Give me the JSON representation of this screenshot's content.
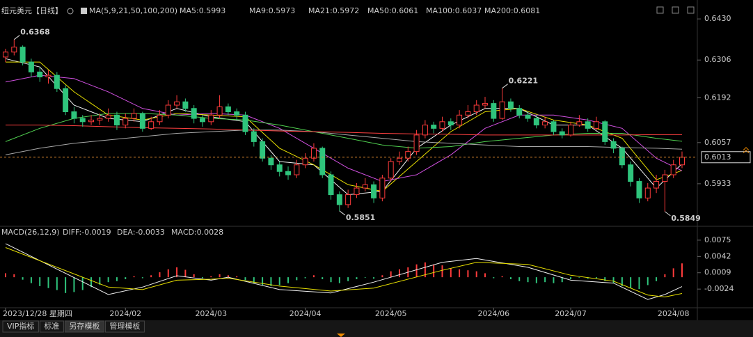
{
  "chart_data": [
    {
      "type": "candlestick",
      "title": "纽元美元【日线】",
      "subtitle": "MA(5,9,21,50,100,200)",
      "up_color": "#ff3b3b",
      "down_color": "#2fc47c",
      "ohlc": [
        [
          0.6315,
          0.634,
          0.63,
          0.633
        ],
        [
          0.633,
          0.6368,
          0.632,
          0.6345
        ],
        [
          0.6345,
          0.635,
          0.629,
          0.63
        ],
        [
          0.63,
          0.631,
          0.6255,
          0.627
        ],
        [
          0.627,
          0.6285,
          0.624,
          0.6255
        ],
        [
          0.6255,
          0.6275,
          0.6235,
          0.626
        ],
        [
          0.626,
          0.627,
          0.621,
          0.622
        ],
        [
          0.622,
          0.623,
          0.614,
          0.615
        ],
        [
          0.615,
          0.6165,
          0.6115,
          0.613
        ],
        [
          0.613,
          0.614,
          0.6105,
          0.612
        ],
        [
          0.612,
          0.614,
          0.611,
          0.6125
        ],
        [
          0.6125,
          0.6145,
          0.611,
          0.613
        ],
        [
          0.613,
          0.616,
          0.612,
          0.614
        ],
        [
          0.614,
          0.615,
          0.6095,
          0.611
        ],
        [
          0.611,
          0.6145,
          0.61,
          0.613
        ],
        [
          0.613,
          0.616,
          0.612,
          0.6145
        ],
        [
          0.6145,
          0.615,
          0.609,
          0.61
        ],
        [
          0.61,
          0.6135,
          0.6095,
          0.612
        ],
        [
          0.612,
          0.6155,
          0.611,
          0.614
        ],
        [
          0.614,
          0.6185,
          0.613,
          0.617
        ],
        [
          0.617,
          0.62,
          0.616,
          0.618
        ],
        [
          0.618,
          0.619,
          0.615,
          0.616
        ],
        [
          0.616,
          0.617,
          0.6115,
          0.613
        ],
        [
          0.613,
          0.614,
          0.6105,
          0.612
        ],
        [
          0.612,
          0.6155,
          0.611,
          0.614
        ],
        [
          0.614,
          0.62,
          0.613,
          0.6165
        ],
        [
          0.6165,
          0.6175,
          0.614,
          0.615
        ],
        [
          0.615,
          0.616,
          0.6125,
          0.614
        ],
        [
          0.614,
          0.615,
          0.608,
          0.609
        ],
        [
          0.609,
          0.61,
          0.6045,
          0.606
        ],
        [
          0.606,
          0.607,
          0.6,
          0.601
        ],
        [
          0.601,
          0.602,
          0.5975,
          0.599
        ],
        [
          0.599,
          0.6,
          0.5955,
          0.597
        ],
        [
          0.597,
          0.5985,
          0.5945,
          0.596
        ],
        [
          0.596,
          0.6005,
          0.595,
          0.599
        ],
        [
          0.599,
          0.6025,
          0.598,
          0.601
        ],
        [
          0.601,
          0.6055,
          0.6,
          0.604
        ],
        [
          0.604,
          0.6045,
          0.595,
          0.596
        ],
        [
          0.596,
          0.597,
          0.5885,
          0.59
        ],
        [
          0.59,
          0.591,
          0.5851,
          0.587
        ],
        [
          0.587,
          0.5915,
          0.586,
          0.59
        ],
        [
          0.59,
          0.5935,
          0.589,
          0.592
        ],
        [
          0.592,
          0.595,
          0.591,
          0.593
        ],
        [
          0.593,
          0.594,
          0.5875,
          0.589
        ],
        [
          0.589,
          0.596,
          0.588,
          0.595
        ],
        [
          0.595,
          0.601,
          0.594,
          0.6
        ],
        [
          0.6,
          0.603,
          0.599,
          0.601
        ],
        [
          0.601,
          0.6045,
          0.6,
          0.603
        ],
        [
          0.603,
          0.6095,
          0.602,
          0.608
        ],
        [
          0.608,
          0.6125,
          0.607,
          0.611
        ],
        [
          0.611,
          0.612,
          0.6085,
          0.61
        ],
        [
          0.61,
          0.6135,
          0.609,
          0.612
        ],
        [
          0.612,
          0.613,
          0.6095,
          0.611
        ],
        [
          0.611,
          0.6155,
          0.61,
          0.614
        ],
        [
          0.614,
          0.617,
          0.613,
          0.615
        ],
        [
          0.615,
          0.6185,
          0.614,
          0.617
        ],
        [
          0.617,
          0.6195,
          0.616,
          0.6175
        ],
        [
          0.6175,
          0.6185,
          0.612,
          0.613
        ],
        [
          0.613,
          0.6221,
          0.6125,
          0.618
        ],
        [
          0.618,
          0.619,
          0.615,
          0.616
        ],
        [
          0.616,
          0.617,
          0.613,
          0.614
        ],
        [
          0.614,
          0.615,
          0.612,
          0.613
        ],
        [
          0.613,
          0.614,
          0.61,
          0.611
        ],
        [
          0.611,
          0.6135,
          0.61,
          0.612
        ],
        [
          0.612,
          0.6125,
          0.608,
          0.609
        ],
        [
          0.609,
          0.61,
          0.607,
          0.608
        ],
        [
          0.608,
          0.612,
          0.6075,
          0.611
        ],
        [
          0.611,
          0.614,
          0.6105,
          0.612
        ],
        [
          0.612,
          0.613,
          0.609,
          0.61
        ],
        [
          0.61,
          0.6135,
          0.6095,
          0.612
        ],
        [
          0.612,
          0.6125,
          0.605,
          0.606
        ],
        [
          0.606,
          0.607,
          0.6025,
          0.604
        ],
        [
          0.604,
          0.6045,
          0.598,
          0.599
        ],
        [
          0.599,
          0.6,
          0.5925,
          0.594
        ],
        [
          0.594,
          0.595,
          0.5875,
          0.589
        ],
        [
          0.589,
          0.5935,
          0.588,
          0.592
        ],
        [
          0.592,
          0.596,
          0.5905,
          0.594
        ],
        [
          0.594,
          0.5975,
          0.5849,
          0.596
        ],
        [
          0.596,
          0.6005,
          0.595,
          0.599
        ],
        [
          0.599,
          0.603,
          0.598,
          0.6013
        ]
      ],
      "series": [
        {
          "name": "MA5:0.5993",
          "color": "#f0f0f0",
          "x": [
            0,
            4,
            8,
            12,
            16,
            20,
            24,
            28,
            32,
            36,
            40,
            44,
            48,
            52,
            56,
            60,
            64,
            68,
            72,
            76,
            79
          ],
          "values": [
            0.631,
            0.6285,
            0.617,
            0.613,
            0.612,
            0.616,
            0.6135,
            0.612,
            0.6,
            0.599,
            0.59,
            0.591,
            0.604,
            0.611,
            0.616,
            0.616,
            0.611,
            0.611,
            0.604,
            0.592,
            0.5993
          ]
        },
        {
          "name": "MA9:0.5973",
          "color": "#e8e000",
          "x": [
            0,
            4,
            8,
            12,
            16,
            20,
            24,
            28,
            32,
            36,
            40,
            44,
            48,
            52,
            56,
            60,
            64,
            68,
            72,
            76,
            79
          ],
          "values": [
            0.63,
            0.63,
            0.621,
            0.614,
            0.6125,
            0.6145,
            0.614,
            0.6135,
            0.604,
            0.599,
            0.593,
            0.591,
            0.6,
            0.609,
            0.615,
            0.616,
            0.6125,
            0.611,
            0.607,
            0.5945,
            0.5973
          ]
        },
        {
          "name": "MA21:0.5972",
          "color": "#d050e0",
          "x": [
            0,
            4,
            8,
            12,
            16,
            20,
            24,
            28,
            32,
            36,
            40,
            44,
            48,
            52,
            56,
            60,
            64,
            68,
            72,
            76,
            79
          ],
          "values": [
            0.624,
            0.626,
            0.625,
            0.621,
            0.616,
            0.614,
            0.6145,
            0.614,
            0.61,
            0.604,
            0.598,
            0.594,
            0.596,
            0.602,
            0.61,
            0.614,
            0.614,
            0.6125,
            0.61,
            0.601,
            0.5972
          ]
        },
        {
          "name": "MA50:0.6061",
          "color": "#50d050",
          "x": [
            0,
            4,
            8,
            12,
            16,
            20,
            24,
            28,
            32,
            36,
            40,
            44,
            48,
            52,
            56,
            60,
            64,
            68,
            72,
            76,
            79
          ],
          "values": [
            0.606,
            0.61,
            0.613,
            0.6145,
            0.6145,
            0.614,
            0.613,
            0.6125,
            0.611,
            0.609,
            0.607,
            0.605,
            0.604,
            0.6045,
            0.606,
            0.607,
            0.608,
            0.6085,
            0.6085,
            0.607,
            0.6061
          ]
        },
        {
          "name": "MA100:0.6037",
          "color": "#a8a8a8",
          "x": [
            0,
            4,
            8,
            12,
            16,
            20,
            24,
            28,
            32,
            36,
            40,
            44,
            48,
            52,
            56,
            60,
            64,
            68,
            72,
            76,
            79
          ],
          "values": [
            0.602,
            0.604,
            0.6055,
            0.6065,
            0.6075,
            0.6085,
            0.609,
            0.6095,
            0.6095,
            0.609,
            0.608,
            0.607,
            0.606,
            0.6055,
            0.605,
            0.6045,
            0.6045,
            0.6045,
            0.6042,
            0.604,
            0.6037
          ]
        },
        {
          "name": "MA200:0.6081",
          "color": "#ff4040",
          "x": [
            0,
            4,
            8,
            12,
            16,
            20,
            24,
            28,
            32,
            36,
            40,
            44,
            48,
            52,
            56,
            60,
            64,
            68,
            72,
            76,
            79
          ],
          "values": [
            0.611,
            0.611,
            0.6108,
            0.6105,
            0.6102,
            0.61,
            0.6098,
            0.6095,
            0.6092,
            0.609,
            0.6088,
            0.6085,
            0.6083,
            0.6082,
            0.608,
            0.608,
            0.608,
            0.608,
            0.608,
            0.6081,
            0.6081
          ]
        }
      ],
      "annotations": [
        {
          "candle": 1,
          "value": 0.6368
        },
        {
          "candle": 58,
          "value": 0.6221
        },
        {
          "candle": 39,
          "value": 0.5851
        },
        {
          "candle": 77,
          "value": 0.5849
        }
      ],
      "last": 0.6013,
      "ylim": [
        0.5811,
        0.6466
      ],
      "yticks": [
        {
          "value": 0.643,
          "label": "0.6430"
        },
        0.6306,
        0.6192,
        0.6057,
        0.5933
      ]
    },
    {
      "type": "macd",
      "title": "MACD(26,12,9)",
      "histogram": {
        "name": "MACD:0.0028",
        "color": "#d050e0",
        "up_color": "#ff3b3b",
        "down_color": "#2fc47c",
        "values": [
          0.0008,
          0.0006,
          -0.0005,
          -0.0012,
          -0.0018,
          -0.0022,
          -0.0026,
          -0.0032,
          -0.003,
          -0.0026,
          -0.002,
          -0.0015,
          -0.001,
          -0.0008,
          -0.0004,
          0.0002,
          -0.0002,
          0.0004,
          0.001,
          0.0016,
          0.002,
          0.0015,
          0.0006,
          -0.0002,
          0.0002,
          0.0006,
          0.0004,
          0.0002,
          -0.0006,
          -0.0012,
          -0.0016,
          -0.0018,
          -0.0016,
          -0.0012,
          -0.0006,
          -0.0002,
          0.0004,
          -0.0004,
          -0.001,
          -0.0012,
          -0.0008,
          -0.0004,
          -0.0001,
          -0.0003,
          0.0004,
          0.0012,
          0.0016,
          0.002,
          0.0026,
          0.003,
          0.0026,
          0.0024,
          0.0018,
          0.0016,
          0.0014,
          0.0012,
          0.0008,
          -0.0002,
          0.0002,
          -0.0004,
          -0.0008,
          -0.001,
          -0.0012,
          -0.001,
          -0.0012,
          -0.001,
          -0.0004,
          -0.0001,
          -0.0003,
          -0.0002,
          -0.0008,
          -0.0012,
          -0.0018,
          -0.0022,
          -0.0024,
          -0.0016,
          -0.0008,
          0.0006,
          0.0018,
          0.0028
        ]
      },
      "series": [
        {
          "name": "DIFF:-0.0019",
          "color": "#f0f0f0",
          "x": [
            0,
            12,
            16,
            20,
            24,
            26,
            32,
            38,
            43,
            51,
            55,
            61,
            66,
            71,
            75,
            77,
            79
          ],
          "values": [
            0.0068,
            -0.0035,
            -0.002,
            0.0003,
            -0.0006,
            0.0,
            -0.0025,
            -0.0032,
            -0.001,
            0.003,
            0.0038,
            0.002,
            -0.0006,
            -0.0012,
            -0.0045,
            -0.0035,
            -0.0019
          ]
        },
        {
          "name": "DEA:-0.0033",
          "color": "#e8e000",
          "x": [
            0,
            12,
            16,
            20,
            24,
            26,
            32,
            38,
            43,
            51,
            55,
            61,
            66,
            71,
            75,
            77,
            79
          ],
          "values": [
            0.006,
            -0.002,
            -0.0025,
            -0.0006,
            -0.0004,
            -0.0002,
            -0.0018,
            -0.0028,
            -0.0022,
            0.0014,
            0.003,
            0.0026,
            0.0004,
            -0.0008,
            -0.0036,
            -0.004,
            -0.0033
          ]
        }
      ],
      "ylim": [
        -0.0059,
        0.0096
      ],
      "yticks": [
        0.0075,
        0.0042,
        0.0009,
        -0.0024
      ],
      "x_labels": [
        {
          "index": 0,
          "label": "2023/12/28 星期四"
        },
        {
          "index": 14,
          "label": "2024/02"
        },
        {
          "index": 24,
          "label": "2024/03"
        },
        {
          "index": 35,
          "label": "2024/04"
        },
        {
          "index": 45,
          "label": "2024/05"
        },
        {
          "index": 57,
          "label": "2024/06"
        },
        {
          "index": 66,
          "label": "2024/07"
        },
        {
          "index": 78,
          "label": "2024/08"
        }
      ]
    }
  ],
  "tabs": [
    "VIP指标",
    "标准",
    "另存模板",
    "管理模板"
  ]
}
